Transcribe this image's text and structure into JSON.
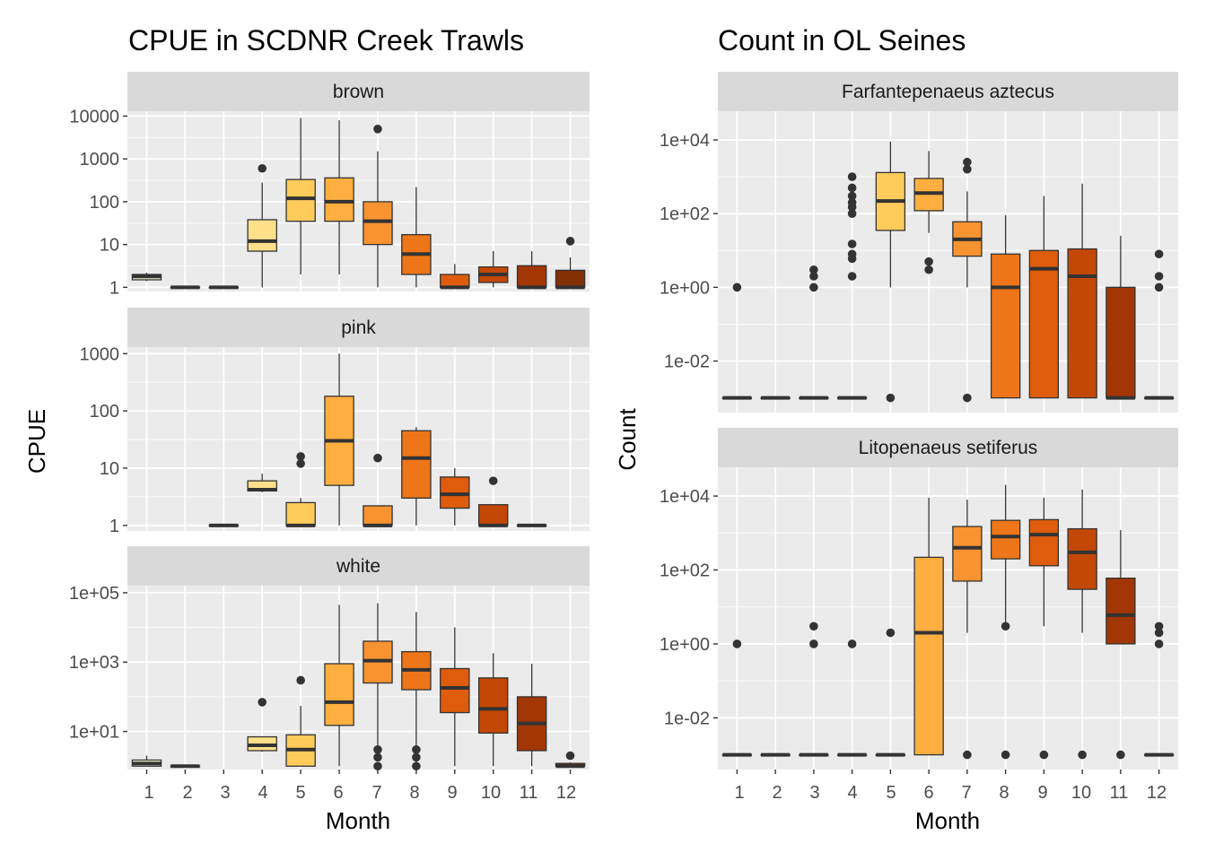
{
  "colors": {
    "panel_bg": "#ebebeb",
    "strip_bg": "#d9d9d9",
    "grid_major": "#ffffff",
    "box_outline": "#333333",
    "month_fill": [
      "#ffffe0",
      "#fff4c0",
      "#ffe9a0",
      "#ffe08a",
      "#ffcc5c",
      "#ffaf40",
      "#f79331",
      "#ee7618",
      "#de5c0c",
      "#c44805",
      "#a33605",
      "#843005"
    ]
  },
  "charts": [
    {
      "title": "CPUE in SCDNR Creek Trawls",
      "xlabel": "Month",
      "ylabel": "CPUE",
      "x_ticks": [
        "1",
        "2",
        "3",
        "4",
        "5",
        "6",
        "7",
        "8",
        "9",
        "10",
        "11",
        "12"
      ]
    },
    {
      "title": "Count in OL Seines",
      "xlabel": "Month",
      "ylabel": "Count",
      "x_ticks": [
        "1",
        "2",
        "3",
        "4",
        "5",
        "6",
        "7",
        "8",
        "9",
        "10",
        "11",
        "12"
      ]
    }
  ],
  "chart_data": [
    {
      "type": "boxplot",
      "title": "CPUE in SCDNR Creek Trawls",
      "xlabel": "Month",
      "ylabel": "CPUE",
      "y_scale": "log10",
      "categories": [
        "1",
        "2",
        "3",
        "4",
        "5",
        "6",
        "7",
        "8",
        "9",
        "10",
        "11",
        "12"
      ],
      "facets": [
        {
          "label": "brown",
          "y_ticks": [
            {
              "v": 1,
              "label": "1"
            },
            {
              "v": 10,
              "label": "10"
            },
            {
              "v": 100,
              "label": "100"
            },
            {
              "v": 1000,
              "label": "1000"
            },
            {
              "v": 10000,
              "label": "10000"
            }
          ],
          "y_range": [
            0.8,
            13000
          ],
          "boxes": [
            {
              "month": 1,
              "lw": 1.4,
              "q1": 1.5,
              "med": 1.8,
              "q3": 2.0,
              "uw": 2.2,
              "out": []
            },
            {
              "month": 2,
              "lw": 1,
              "q1": 1,
              "med": 1,
              "q3": 1,
              "uw": 1,
              "out": []
            },
            {
              "month": 3,
              "lw": 1,
              "q1": 1,
              "med": 1,
              "q3": 1,
              "uw": 1,
              "out": []
            },
            {
              "month": 4,
              "lw": 1,
              "q1": 7,
              "med": 12,
              "q3": 38,
              "uw": 280,
              "out": [
                600
              ]
            },
            {
              "month": 5,
              "lw": 2,
              "q1": 35,
              "med": 120,
              "q3": 330,
              "uw": 9000,
              "out": []
            },
            {
              "month": 6,
              "lw": 2,
              "q1": 35,
              "med": 100,
              "q3": 360,
              "uw": 8000,
              "out": []
            },
            {
              "month": 7,
              "lw": 1,
              "q1": 10,
              "med": 35,
              "q3": 100,
              "uw": 1500,
              "out": [
                5000
              ]
            },
            {
              "month": 8,
              "lw": 1,
              "q1": 2,
              "med": 6,
              "q3": 17,
              "uw": 220,
              "out": []
            },
            {
              "month": 9,
              "lw": 1,
              "q1": 1,
              "med": 1,
              "q3": 2,
              "uw": 3.5,
              "out": []
            },
            {
              "month": 10,
              "lw": 1,
              "q1": 1.3,
              "med": 2,
              "q3": 3,
              "uw": 7,
              "out": []
            },
            {
              "month": 11,
              "lw": 1,
              "q1": 1,
              "med": 1,
              "q3": 3.2,
              "uw": 7,
              "out": []
            },
            {
              "month": 12,
              "lw": 1,
              "q1": 1,
              "med": 1,
              "q3": 2.5,
              "uw": 5,
              "out": [
                12
              ]
            }
          ]
        },
        {
          "label": "pink",
          "y_ticks": [
            {
              "v": 1,
              "label": "1"
            },
            {
              "v": 10,
              "label": "10"
            },
            {
              "v": 100,
              "label": "100"
            },
            {
              "v": 1000,
              "label": "1000"
            }
          ],
          "y_range": [
            0.8,
            1300
          ],
          "boxes": [
            {
              "month": 3,
              "lw": 1,
              "q1": 1,
              "med": 1,
              "q3": 1,
              "uw": 1,
              "out": []
            },
            {
              "month": 4,
              "lw": 3.8,
              "q1": 4,
              "med": 4.2,
              "q3": 6,
              "uw": 8,
              "out": []
            },
            {
              "month": 5,
              "lw": 1,
              "q1": 1,
              "med": 1,
              "q3": 2.5,
              "uw": 3,
              "out": [
                12,
                16
              ]
            },
            {
              "month": 6,
              "lw": 1,
              "q1": 5,
              "med": 30,
              "q3": 180,
              "uw": 1000,
              "out": []
            },
            {
              "month": 7,
              "lw": 1,
              "q1": 1,
              "med": 1,
              "q3": 2.2,
              "uw": 2.2,
              "out": [
                15
              ]
            },
            {
              "month": 8,
              "lw": 1,
              "q1": 3,
              "med": 15,
              "q3": 45,
              "uw": 52,
              "out": []
            },
            {
              "month": 9,
              "lw": 1,
              "q1": 2,
              "med": 3.5,
              "q3": 7,
              "uw": 10,
              "out": []
            },
            {
              "month": 10,
              "lw": 1,
              "q1": 1,
              "med": 1,
              "q3": 2.3,
              "uw": 2.3,
              "out": [
                6
              ]
            },
            {
              "month": 11,
              "lw": 1,
              "q1": 1,
              "med": 1,
              "q3": 1,
              "uw": 1,
              "out": []
            }
          ]
        },
        {
          "label": "white",
          "y_ticks": [
            {
              "v": 10,
              "label": "1e+01"
            },
            {
              "v": 1000,
              "label": "1e+03"
            },
            {
              "v": 100000,
              "label": "1e+05"
            }
          ],
          "y_range": [
            0.8,
            160000
          ],
          "boxes": [
            {
              "month": 1,
              "lw": 1,
              "q1": 1,
              "med": 1.2,
              "q3": 1.5,
              "uw": 2,
              "out": []
            },
            {
              "month": 2,
              "lw": 1,
              "q1": 1,
              "med": 1,
              "q3": 1,
              "uw": 1.1,
              "out": []
            },
            {
              "month": 4,
              "lw": 2.6,
              "q1": 2.8,
              "med": 4,
              "q3": 7,
              "uw": 7,
              "out": [
                70
              ]
            },
            {
              "month": 5,
              "lw": 1,
              "q1": 1,
              "med": 3,
              "q3": 8,
              "uw": 55,
              "out": [
                300
              ]
            },
            {
              "month": 6,
              "lw": 1,
              "q1": 15,
              "med": 70,
              "q3": 900,
              "uw": 45000,
              "out": []
            },
            {
              "month": 7,
              "lw": 2,
              "q1": 250,
              "med": 1100,
              "q3": 4000,
              "uw": 50000,
              "out": [
                1,
                1.8,
                3
              ]
            },
            {
              "month": 8,
              "lw": 1,
              "q1": 160,
              "med": 600,
              "q3": 2000,
              "uw": 28000,
              "out": [
                1,
                1.8,
                3
              ]
            },
            {
              "month": 9,
              "lw": 1,
              "q1": 35,
              "med": 180,
              "q3": 650,
              "uw": 10000,
              "out": []
            },
            {
              "month": 10,
              "lw": 1,
              "q1": 9,
              "med": 45,
              "q3": 350,
              "uw": 1800,
              "out": []
            },
            {
              "month": 11,
              "lw": 1,
              "q1": 2.8,
              "med": 17,
              "q3": 100,
              "uw": 900,
              "out": []
            },
            {
              "month": 12,
              "lw": 1,
              "q1": 1,
              "med": 1,
              "q3": 1.2,
              "uw": 1.3,
              "out": [
                2
              ]
            }
          ]
        }
      ]
    },
    {
      "type": "boxplot",
      "title": "Count in OL Seines",
      "xlabel": "Month",
      "ylabel": "Count",
      "y_scale": "log10",
      "categories": [
        "1",
        "2",
        "3",
        "4",
        "5",
        "6",
        "7",
        "8",
        "9",
        "10",
        "11",
        "12"
      ],
      "facets": [
        {
          "label": "Farfantepenaeus aztecus",
          "y_ticks": [
            {
              "v": 0.01,
              "label": "1e-02"
            },
            {
              "v": 1,
              "label": "1e+00"
            },
            {
              "v": 100,
              "label": "1e+02"
            },
            {
              "v": 10000,
              "label": "1e+04"
            }
          ],
          "y_range": [
            0.0004,
            60000
          ],
          "boxes": [
            {
              "month": 1,
              "lw": 0.001,
              "q1": 0.001,
              "med": 0.001,
              "q3": 0.001,
              "uw": 0.001,
              "out": [
                1
              ]
            },
            {
              "month": 2,
              "lw": 0.001,
              "q1": 0.001,
              "med": 0.001,
              "q3": 0.001,
              "uw": 0.001,
              "out": []
            },
            {
              "month": 3,
              "lw": 0.001,
              "q1": 0.001,
              "med": 0.001,
              "q3": 0.001,
              "uw": 0.001,
              "out": [
                1,
                2,
                3
              ]
            },
            {
              "month": 4,
              "lw": 0.001,
              "q1": 0.001,
              "med": 0.001,
              "q3": 0.001,
              "uw": 0.001,
              "out": [
                2,
                6,
                8,
                15,
                100,
                150,
                200,
                300,
                500,
                1000
              ]
            },
            {
              "month": 5,
              "lw": 1,
              "q1": 35,
              "med": 220,
              "q3": 1300,
              "uw": 9000,
              "out": [
                0.001
              ]
            },
            {
              "month": 6,
              "lw": 30,
              "q1": 120,
              "med": 360,
              "q3": 900,
              "uw": 5000,
              "out": [
                3,
                5
              ]
            },
            {
              "month": 7,
              "lw": 1,
              "q1": 7,
              "med": 20,
              "q3": 60,
              "uw": 400,
              "out": [
                0.001,
                1600,
                2500
              ]
            },
            {
              "month": 8,
              "lw": 0.001,
              "q1": 0.001,
              "med": 1,
              "q3": 8,
              "uw": 90,
              "out": []
            },
            {
              "month": 9,
              "lw": 0.001,
              "q1": 0.001,
              "med": 3.2,
              "q3": 10,
              "uw": 300,
              "out": []
            },
            {
              "month": 10,
              "lw": 0.001,
              "q1": 0.001,
              "med": 2,
              "q3": 11,
              "uw": 650,
              "out": []
            },
            {
              "month": 11,
              "lw": 0.001,
              "q1": 0.001,
              "med": 0.001,
              "q3": 1,
              "uw": 25,
              "out": []
            },
            {
              "month": 12,
              "lw": 0.001,
              "q1": 0.001,
              "med": 0.001,
              "q3": 0.001,
              "uw": 0.001,
              "out": [
                1,
                2,
                8
              ]
            }
          ]
        },
        {
          "label": "Litopenaeus setiferus",
          "y_ticks": [
            {
              "v": 0.01,
              "label": "1e-02"
            },
            {
              "v": 1,
              "label": "1e+00"
            },
            {
              "v": 100,
              "label": "1e+02"
            },
            {
              "v": 10000,
              "label": "1e+04"
            }
          ],
          "y_range": [
            0.0004,
            60000
          ],
          "boxes": [
            {
              "month": 1,
              "lw": 0.001,
              "q1": 0.001,
              "med": 0.001,
              "q3": 0.001,
              "uw": 0.001,
              "out": [
                1
              ]
            },
            {
              "month": 2,
              "lw": 0.001,
              "q1": 0.001,
              "med": 0.001,
              "q3": 0.001,
              "uw": 0.001,
              "out": []
            },
            {
              "month": 3,
              "lw": 0.001,
              "q1": 0.001,
              "med": 0.001,
              "q3": 0.001,
              "uw": 0.001,
              "out": [
                1,
                3
              ]
            },
            {
              "month": 4,
              "lw": 0.001,
              "q1": 0.001,
              "med": 0.001,
              "q3": 0.001,
              "uw": 0.001,
              "out": [
                1
              ]
            },
            {
              "month": 5,
              "lw": 0.001,
              "q1": 0.001,
              "med": 0.001,
              "q3": 0.001,
              "uw": 0.001,
              "out": [
                2
              ]
            },
            {
              "month": 6,
              "lw": 0.001,
              "q1": 0.001,
              "med": 2,
              "q3": 220,
              "uw": 9000,
              "out": []
            },
            {
              "month": 7,
              "lw": 2,
              "q1": 50,
              "med": 400,
              "q3": 1500,
              "uw": 8000,
              "out": [
                0.001
              ]
            },
            {
              "month": 8,
              "lw": 3,
              "q1": 200,
              "med": 800,
              "q3": 2200,
              "uw": 20000,
              "out": [
                0.001,
                3
              ]
            },
            {
              "month": 9,
              "lw": 3,
              "q1": 130,
              "med": 900,
              "q3": 2300,
              "uw": 9000,
              "out": [
                0.001
              ]
            },
            {
              "month": 10,
              "lw": 2,
              "q1": 30,
              "med": 300,
              "q3": 1300,
              "uw": 15000,
              "out": [
                0.001
              ]
            },
            {
              "month": 11,
              "lw": 1,
              "q1": 1,
              "med": 6,
              "q3": 60,
              "uw": 1200,
              "out": [
                0.001
              ]
            },
            {
              "month": 12,
              "lw": 0.001,
              "q1": 0.001,
              "med": 0.001,
              "q3": 0.001,
              "uw": 0.001,
              "out": [
                1,
                2,
                3
              ]
            }
          ]
        }
      ]
    }
  ]
}
